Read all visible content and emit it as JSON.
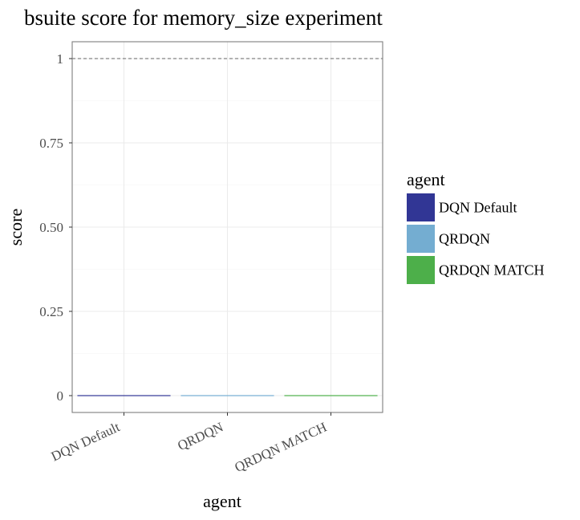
{
  "chart_data": {
    "type": "bar",
    "title": "bsuite score for memory_size experiment",
    "xlabel": "agent",
    "ylabel": "score",
    "categories": [
      "DQN Default",
      "QRDQN",
      "QRDQN MATCH"
    ],
    "values": [
      0,
      0,
      0
    ],
    "colors": [
      "#313695",
      "#74add1",
      "#4daf4a"
    ],
    "ylim": [
      -0.05,
      1.05
    ],
    "yticks": [
      0,
      0.25,
      0.5,
      0.75,
      1
    ],
    "ytick_labels": [
      "0",
      "0.25",
      "0.50",
      "0.75",
      "1"
    ],
    "reference_line": {
      "y": 1,
      "style": "dashed"
    },
    "grid": true,
    "legend": {
      "title": "agent",
      "position": "right",
      "entries": [
        "DQN Default",
        "QRDQN",
        "QRDQN MATCH"
      ]
    }
  }
}
